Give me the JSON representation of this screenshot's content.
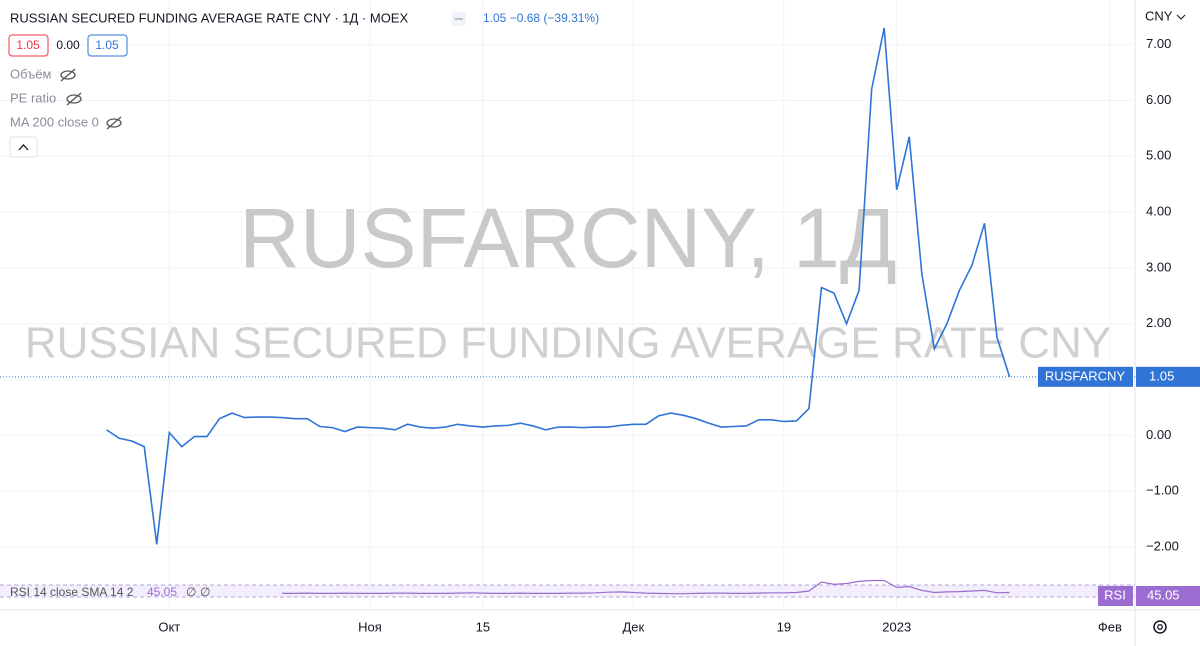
{
  "chart_data": {
    "type": "line",
    "title": "RUSSIAN SECURED FUNDING AVERAGE RATE CNY · 1Д · MOEX",
    "change": "1.05 −0.68 (−39.31%)",
    "quote_boxes": [
      "1.05",
      "0.00",
      "1.05"
    ],
    "indicators": [
      "Объём",
      "PE ratio",
      "MA 200 close 0"
    ],
    "watermark": [
      "RUSFARCNY, 1Д",
      "RUSSIAN SECURED FUNDING AVERAGE RATE CNY"
    ],
    "currency": "CNY",
    "series": [
      {
        "name": "RUSFARCNY",
        "color": "#2f74d6",
        "values": [
          0.1,
          -0.05,
          -0.1,
          -0.2,
          -1.95,
          0.05,
          -0.2,
          -0.02,
          -0.02,
          0.3,
          0.4,
          0.32,
          0.33,
          0.33,
          0.32,
          0.3,
          0.3,
          0.16,
          0.14,
          0.07,
          0.15,
          0.14,
          0.13,
          0.1,
          0.2,
          0.15,
          0.13,
          0.15,
          0.2,
          0.17,
          0.15,
          0.17,
          0.18,
          0.22,
          0.17,
          0.1,
          0.15,
          0.15,
          0.14,
          0.15,
          0.15,
          0.18,
          0.2,
          0.2,
          0.35,
          0.4,
          0.36,
          0.3,
          0.22,
          0.15,
          0.16,
          0.17,
          0.28,
          0.28,
          0.25,
          0.26,
          0.48,
          2.65,
          2.55,
          2.0,
          2.6,
          6.2,
          7.3,
          4.4,
          5.35,
          2.9,
          1.55,
          2.0,
          2.6,
          3.05,
          3.8,
          1.75,
          1.05
        ]
      }
    ],
    "xlim": [
      -8.5,
      82
    ],
    "xticks": [
      {
        "value": 5,
        "label": "Окт"
      },
      {
        "value": 21,
        "label": "Ноя"
      },
      {
        "value": 30,
        "label": "15"
      },
      {
        "value": 42,
        "label": "Дек"
      },
      {
        "value": 54,
        "label": "19"
      },
      {
        "value": 63,
        "label": "2023"
      },
      {
        "value": 80,
        "label": "Фев"
      }
    ],
    "ylim": [
      -2.5,
      7.8
    ],
    "yticks": [
      {
        "value": 7,
        "label": "7.00"
      },
      {
        "value": 6,
        "label": "6.00"
      },
      {
        "value": 5,
        "label": "5.00"
      },
      {
        "value": 4,
        "label": "4.00"
      },
      {
        "value": 3,
        "label": "3.00"
      },
      {
        "value": 2,
        "label": "2.00"
      },
      {
        "value": 1,
        "label": "1.00"
      },
      {
        "value": 0,
        "label": "0.00"
      },
      {
        "value": -1,
        "label": "−1.00"
      },
      {
        "value": -2,
        "label": "−2.00"
      }
    ],
    "grid": true,
    "rsi": {
      "name": "RSI",
      "label": "RSI 14 close SMA 14 2",
      "params": [
        "∅",
        "∅"
      ],
      "color": "#9c6dd0",
      "ylim": [
        0,
        100
      ],
      "values": [
        null,
        null,
        null,
        null,
        null,
        null,
        null,
        null,
        null,
        null,
        null,
        null,
        null,
        null,
        42,
        42,
        43,
        42,
        42,
        43,
        42,
        42,
        42,
        43,
        43,
        42,
        42,
        42,
        43,
        44,
        43,
        42,
        42,
        43,
        42,
        42,
        42,
        43,
        43,
        44,
        46,
        47,
        45,
        43,
        42,
        41,
        41,
        42,
        43,
        43,
        42,
        42,
        43,
        44,
        44,
        45,
        50,
        80,
        72,
        75,
        82,
        85,
        85,
        62,
        65,
        52,
        45,
        47,
        48,
        50,
        52,
        44,
        45.05
      ]
    }
  }
}
